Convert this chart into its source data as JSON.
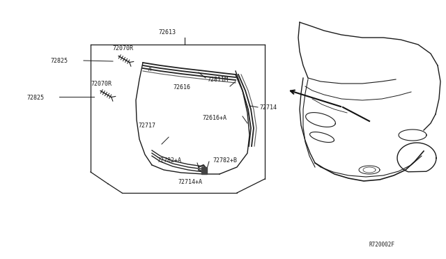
{
  "bg_color": "#ffffff",
  "fig_width": 6.4,
  "fig_height": 3.72,
  "dpi": 100,
  "ref_code": "R720002F",
  "font_size": 6.0,
  "line_color": "#1a1a1a",
  "text_color": "#1a1a1a",
  "label_72613": "72613",
  "label_72811M": "72811M",
  "label_72616": "72616",
  "label_72714": "72714",
  "label_72616A": "72616+A",
  "label_72717": "72717",
  "label_72782A": "72782+A",
  "label_72782B": "72782+B",
  "label_72714A": "72714+A",
  "label_72070R": "72070R",
  "label_72825": "72825"
}
